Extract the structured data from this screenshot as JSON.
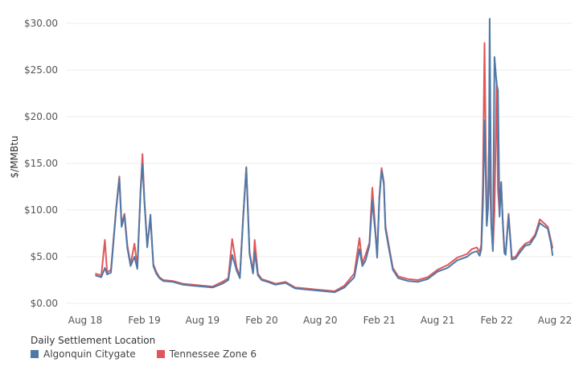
{
  "chart_data": {
    "type": "line",
    "title": "",
    "xlabel": "",
    "ylabel": "$/MMBtu",
    "ylim": [
      0,
      30.5
    ],
    "y_ticks": [
      "$0.00",
      "$5.00",
      "$10.00",
      "$15.00",
      "$20.00",
      "$25.00",
      "$30.00"
    ],
    "y_tick_values": [
      0,
      5,
      10,
      15,
      20,
      25,
      30
    ],
    "x_ticks": [
      "Aug 18",
      "Feb 19",
      "Aug 19",
      "Feb 20",
      "Aug 20",
      "Feb 21",
      "Aug 21",
      "Feb 22",
      "Aug 22"
    ],
    "x_tick_dates": [
      "2018-08-01",
      "2019-02-01",
      "2019-08-01",
      "2020-02-01",
      "2020-08-01",
      "2021-02-01",
      "2021-08-01",
      "2022-02-01",
      "2022-08-01"
    ],
    "xlim": [
      "2018-08-01",
      "2022-08-01"
    ],
    "grid": true,
    "legend_title": "Daily Settlement Location",
    "legend_position": "bottom-left",
    "series": [
      {
        "name": "Tennessee Zone 6",
        "color": "#e15759",
        "x": [
          "2018-09-01",
          "2018-09-20",
          "2018-10-01",
          "2018-10-08",
          "2018-10-20",
          "2018-11-05",
          "2018-11-15",
          "2018-11-22",
          "2018-12-01",
          "2018-12-10",
          "2018-12-20",
          "2019-01-01",
          "2019-01-10",
          "2019-01-20",
          "2019-01-26",
          "2019-02-01",
          "2019-02-10",
          "2019-02-20",
          "2019-03-01",
          "2019-03-10",
          "2019-03-20",
          "2019-04-01",
          "2019-05-01",
          "2019-06-01",
          "2019-07-01",
          "2019-08-01",
          "2019-09-01",
          "2019-10-01",
          "2019-10-20",
          "2019-11-01",
          "2019-11-15",
          "2019-11-25",
          "2019-12-05",
          "2019-12-15",
          "2019-12-25",
          "2020-01-05",
          "2020-01-10",
          "2020-01-20",
          "2020-02-01",
          "2020-02-20",
          "2020-03-15",
          "2020-04-15",
          "2020-05-15",
          "2020-06-15",
          "2020-07-15",
          "2020-08-15",
          "2020-09-15",
          "2020-10-15",
          "2020-11-15",
          "2020-12-01",
          "2020-12-10",
          "2020-12-20",
          "2021-01-01",
          "2021-01-10",
          "2021-01-20",
          "2021-01-25",
          "2021-02-01",
          "2021-02-08",
          "2021-02-15",
          "2021-02-20",
          "2021-03-01",
          "2021-03-15",
          "2021-04-01",
          "2021-05-01",
          "2021-06-01",
          "2021-07-01",
          "2021-08-01",
          "2021-09-01",
          "2021-10-01",
          "2021-11-01",
          "2021-11-15",
          "2021-12-01",
          "2021-12-10",
          "2021-12-15",
          "2021-12-20",
          "2021-12-25",
          "2022-01-01",
          "2022-01-05",
          "2022-01-08",
          "2022-01-10",
          "2022-01-15",
          "2022-01-20",
          "2022-01-25",
          "2022-02-01",
          "2022-02-05",
          "2022-02-10",
          "2022-02-15",
          "2022-02-20",
          "2022-02-25",
          "2022-03-01",
          "2022-03-10",
          "2022-03-20",
          "2022-04-01",
          "2022-04-15",
          "2022-05-01",
          "2022-05-15",
          "2022-06-01",
          "2022-06-15",
          "2022-07-01",
          "2022-07-10",
          "2022-07-20",
          "2022-07-25"
        ],
        "values": [
          3.2,
          3.0,
          6.8,
          3.3,
          3.6,
          10.2,
          13.6,
          8.5,
          9.6,
          6.2,
          4.2,
          6.4,
          3.9,
          12.2,
          16.0,
          11.2,
          6.3,
          9.0,
          4.2,
          3.4,
          2.8,
          2.5,
          2.4,
          2.1,
          2.0,
          1.9,
          1.8,
          2.3,
          2.7,
          6.9,
          3.8,
          2.9,
          9.2,
          14.6,
          5.5,
          3.4,
          6.8,
          3.2,
          2.6,
          2.4,
          2.1,
          2.3,
          1.7,
          1.6,
          1.5,
          1.4,
          1.3,
          1.9,
          3.2,
          7.0,
          4.3,
          5.2,
          6.5,
          12.4,
          7.6,
          5.1,
          11.4,
          14.5,
          13.0,
          8.3,
          6.5,
          3.8,
          2.9,
          2.6,
          2.5,
          2.8,
          3.6,
          4.1,
          4.9,
          5.3,
          5.8,
          6.0,
          5.5,
          6.3,
          13.0,
          27.9,
          8.6,
          10.5,
          17.4,
          13.2,
          8.6,
          5.8,
          9.8,
          23.8,
          12.2,
          9.6,
          12.9,
          8.9,
          5.7,
          5.4,
          9.6,
          4.9,
          5.0,
          5.8,
          6.4,
          6.6,
          7.4,
          9.0,
          8.5,
          8.2,
          6.7,
          5.9
        ]
      },
      {
        "name": "Algonquin Citygate",
        "color": "#4e79a7",
        "x": [
          "2018-09-01",
          "2018-09-20",
          "2018-10-01",
          "2018-10-08",
          "2018-10-20",
          "2018-11-05",
          "2018-11-15",
          "2018-11-22",
          "2018-12-01",
          "2018-12-10",
          "2018-12-20",
          "2019-01-01",
          "2019-01-10",
          "2019-01-20",
          "2019-01-26",
          "2019-02-01",
          "2019-02-10",
          "2019-02-20",
          "2019-03-01",
          "2019-03-10",
          "2019-03-20",
          "2019-04-01",
          "2019-05-01",
          "2019-06-01",
          "2019-07-01",
          "2019-08-01",
          "2019-09-01",
          "2019-10-01",
          "2019-10-20",
          "2019-11-01",
          "2019-11-15",
          "2019-11-25",
          "2019-12-05",
          "2019-12-15",
          "2019-12-25",
          "2020-01-05",
          "2020-01-10",
          "2020-01-20",
          "2020-02-01",
          "2020-02-20",
          "2020-03-15",
          "2020-04-15",
          "2020-05-15",
          "2020-06-15",
          "2020-07-15",
          "2020-08-15",
          "2020-09-15",
          "2020-10-15",
          "2020-11-15",
          "2020-12-01",
          "2020-12-10",
          "2020-12-20",
          "2021-01-01",
          "2021-01-10",
          "2021-01-20",
          "2021-01-25",
          "2021-02-01",
          "2021-02-08",
          "2021-02-15",
          "2021-02-20",
          "2021-03-01",
          "2021-03-15",
          "2021-04-01",
          "2021-05-01",
          "2021-06-01",
          "2021-07-01",
          "2021-08-01",
          "2021-09-01",
          "2021-10-01",
          "2021-11-01",
          "2021-11-15",
          "2021-12-01",
          "2021-12-10",
          "2021-12-15",
          "2021-12-20",
          "2021-12-25",
          "2022-01-01",
          "2022-01-05",
          "2022-01-08",
          "2022-01-10",
          "2022-01-15",
          "2022-01-20",
          "2022-01-25",
          "2022-02-01",
          "2022-02-05",
          "2022-02-10",
          "2022-02-15",
          "2022-02-20",
          "2022-02-25",
          "2022-03-01",
          "2022-03-10",
          "2022-03-20",
          "2022-04-01",
          "2022-04-15",
          "2022-05-01",
          "2022-05-15",
          "2022-06-01",
          "2022-06-15",
          "2022-07-01",
          "2022-07-10",
          "2022-07-20",
          "2022-07-25"
        ],
        "values": [
          3.0,
          2.8,
          3.8,
          3.1,
          3.3,
          10.0,
          13.4,
          8.2,
          9.4,
          5.9,
          4.0,
          5.0,
          3.7,
          12.0,
          14.9,
          11.0,
          6.0,
          9.5,
          4.0,
          3.2,
          2.7,
          2.4,
          2.3,
          2.0,
          1.9,
          1.8,
          1.7,
          2.1,
          2.5,
          5.2,
          3.5,
          2.7,
          9.0,
          14.5,
          5.3,
          3.2,
          5.5,
          3.0,
          2.5,
          2.3,
          2.0,
          2.2,
          1.6,
          1.5,
          1.4,
          1.3,
          1.2,
          1.7,
          2.8,
          5.8,
          4.0,
          4.6,
          6.2,
          11.0,
          7.3,
          4.9,
          11.2,
          14.2,
          12.8,
          8.0,
          6.2,
          3.6,
          2.7,
          2.4,
          2.3,
          2.6,
          3.4,
          3.8,
          4.6,
          5.0,
          5.4,
          5.6,
          5.1,
          5.8,
          10.5,
          19.6,
          8.3,
          10.2,
          17.0,
          30.5,
          8.4,
          5.6,
          26.4,
          23.5,
          22.8,
          9.3,
          13.0,
          8.7,
          5.4,
          5.2,
          9.4,
          4.7,
          4.8,
          5.5,
          6.2,
          6.3,
          7.2,
          8.6,
          8.2,
          8.0,
          6.4,
          5.1
        ]
      }
    ]
  }
}
